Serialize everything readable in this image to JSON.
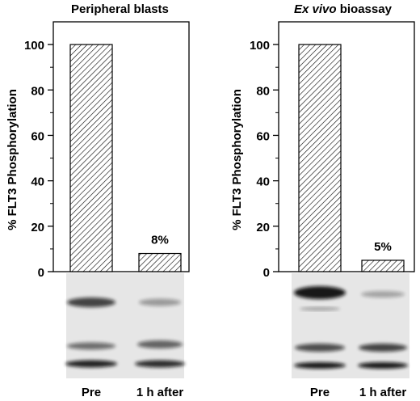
{
  "chart_data": [
    {
      "type": "bar",
      "title": "Peripheral blasts",
      "title_italic_part": "",
      "ylabel": "% FLT3 Phosphorylation",
      "xlabel": "",
      "categories": [
        "Pre",
        "1 h after"
      ],
      "values": [
        100,
        8
      ],
      "data_labels": [
        "",
        "8%"
      ],
      "ylim": [
        0,
        110
      ],
      "yticks": [
        0,
        20,
        40,
        60,
        80,
        100
      ],
      "grid": false,
      "bar_fill": "diagonal hatch",
      "blot_image": "western blot with two lanes below bars"
    },
    {
      "type": "bar",
      "title": "bioassay",
      "title_italic_part": "Ex vivo",
      "ylabel": "% FLT3 Phosphorylation",
      "xlabel": "",
      "categories": [
        "Pre",
        "1 h after"
      ],
      "values": [
        100,
        5
      ],
      "data_labels": [
        "",
        "5%"
      ],
      "ylim": [
        0,
        110
      ],
      "yticks": [
        0,
        20,
        40,
        60,
        80,
        100
      ],
      "grid": false,
      "bar_fill": "diagonal hatch",
      "blot_image": "western blot with two lanes below bars"
    }
  ]
}
